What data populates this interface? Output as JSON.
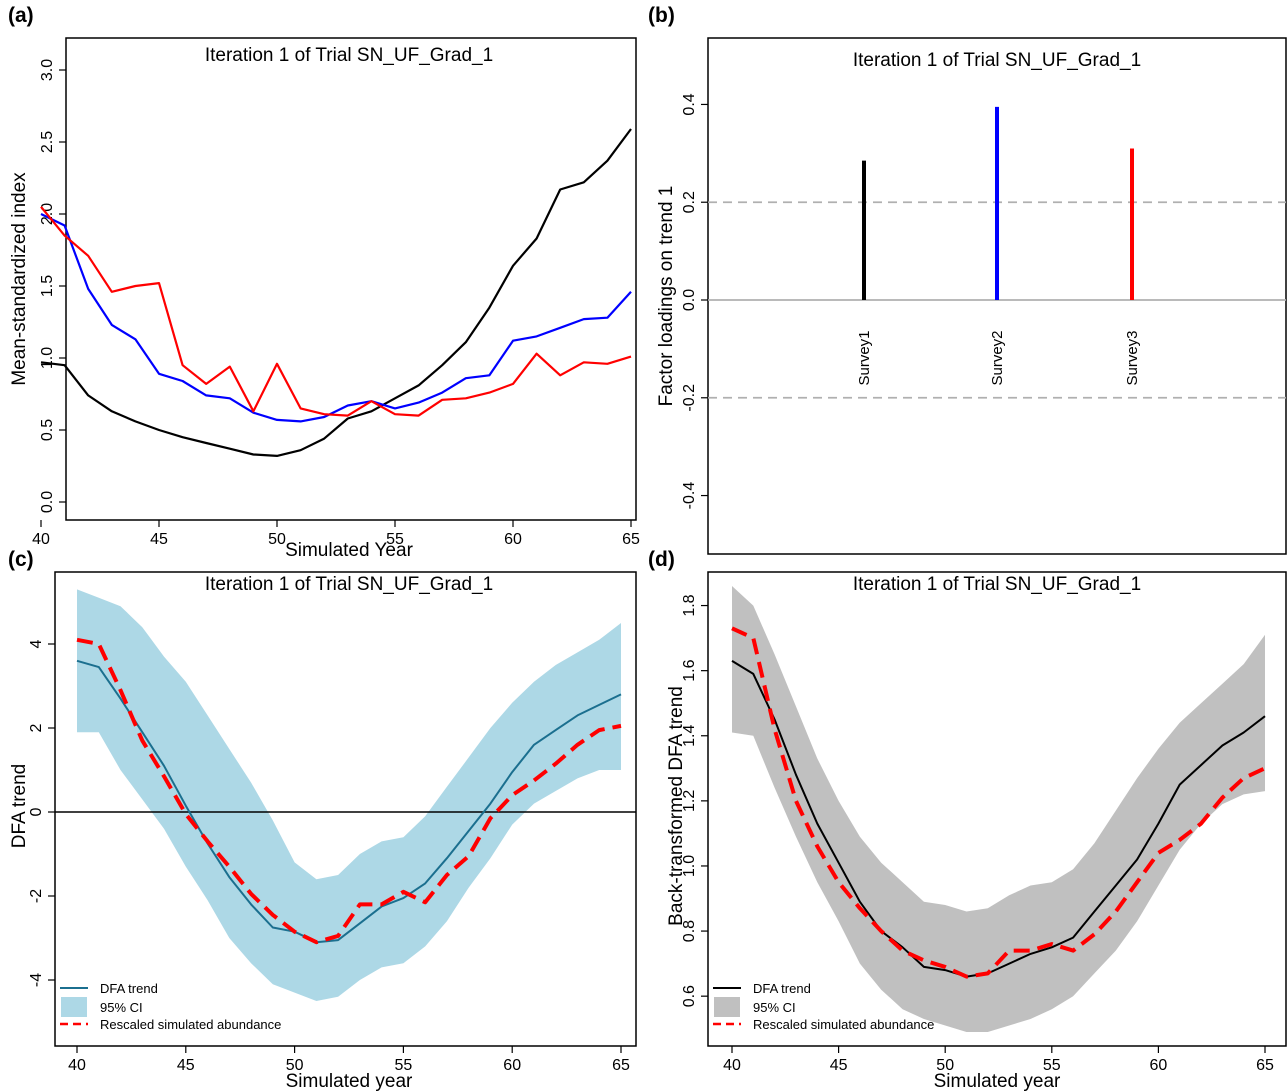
{
  "chart_data": [
    {
      "panel": "(a)",
      "type": "line",
      "title": "Iteration 1 of Trial SN_UF_Grad_1",
      "xlabel": "Simulated Year",
      "ylabel": "Mean-standardized index",
      "xlim": [
        40,
        65
      ],
      "ylim": [
        0,
        3
      ],
      "xticks": [
        40,
        45,
        50,
        55,
        60,
        65
      ],
      "yticks": [
        0.0,
        0.5,
        1.0,
        1.5,
        2.0,
        2.5,
        3.0
      ],
      "ytick_labels": [
        "0.0",
        "0.5",
        "1.0",
        "1.5",
        "2.0",
        "2.5",
        "3.0"
      ],
      "x": [
        40,
        41,
        42,
        43,
        44,
        45,
        46,
        47,
        48,
        49,
        50,
        51,
        52,
        53,
        54,
        55,
        56,
        57,
        58,
        59,
        60,
        61,
        62,
        63,
        64,
        65
      ],
      "series": [
        {
          "color": "#000000",
          "values": [
            0.97,
            0.95,
            0.74,
            0.63,
            0.56,
            0.5,
            0.45,
            0.41,
            0.37,
            0.33,
            0.32,
            0.36,
            0.44,
            0.58,
            0.63,
            0.72,
            0.81,
            0.95,
            1.11,
            1.35,
            1.64,
            1.83,
            2.17,
            2.22,
            2.37,
            2.59
          ]
        },
        {
          "color": "#0000ff",
          "values": [
            2.0,
            1.92,
            1.48,
            1.23,
            1.13,
            0.89,
            0.84,
            0.74,
            0.72,
            0.62,
            0.57,
            0.56,
            0.59,
            0.67,
            0.7,
            0.65,
            0.69,
            0.76,
            0.86,
            0.88,
            1.12,
            1.15,
            1.21,
            1.27,
            1.28,
            1.46
          ]
        },
        {
          "color": "#ff0000",
          "values": [
            2.05,
            1.85,
            1.71,
            1.46,
            1.5,
            1.52,
            0.95,
            0.82,
            0.94,
            0.63,
            0.96,
            0.65,
            0.61,
            0.6,
            0.7,
            0.61,
            0.6,
            0.71,
            0.72,
            0.76,
            0.82,
            1.03,
            0.88,
            0.97,
            0.96,
            1.01
          ]
        }
      ]
    },
    {
      "panel": "(b)",
      "type": "bar",
      "title": "Iteration 1 of Trial SN_UF_Grad_1",
      "ylabel": "Factor loadings on trend 1",
      "ylim": [
        -0.45,
        0.45
      ],
      "yticks": [
        -0.4,
        -0.2,
        0.0,
        0.2,
        0.4
      ],
      "ytick_labels": [
        "-0.4",
        "-0.2",
        "0.0",
        "0.2",
        "0.4"
      ],
      "categories": [
        "Survey1",
        "Survey2",
        "Survey3"
      ],
      "values": [
        0.285,
        0.395,
        0.31
      ],
      "colors": [
        "#000000",
        "#0000ff",
        "#ff0000"
      ],
      "reference_lines": [
        0.2,
        -0.2
      ]
    },
    {
      "panel": "(c)",
      "type": "area",
      "title": "Iteration 1 of Trial SN_UF_Grad_1",
      "xlabel": "Simulated year",
      "ylabel": "DFA trend",
      "xlim": [
        40,
        65
      ],
      "ylim": [
        -5,
        5
      ],
      "xticks": [
        40,
        45,
        50,
        55,
        60,
        65
      ],
      "yticks": [
        -4,
        -2,
        0,
        2,
        4
      ],
      "ytick_labels": [
        "-4",
        "-2",
        "0",
        "2",
        "4"
      ],
      "x": [
        40,
        41,
        42,
        43,
        44,
        45,
        46,
        47,
        48,
        49,
        50,
        51,
        52,
        53,
        54,
        55,
        56,
        57,
        58,
        59,
        60,
        61,
        62,
        63,
        64,
        65
      ],
      "ci_color": "#add8e6",
      "trend_color": "#1b6f8f",
      "abundance_color": "#ff0000",
      "trend": [
        3.6,
        3.45,
        2.7,
        1.9,
        1.1,
        0.15,
        -0.75,
        -1.55,
        -2.2,
        -2.75,
        -2.85,
        -3.1,
        -3.05,
        -2.65,
        -2.25,
        -2.05,
        -1.7,
        -1.1,
        -0.45,
        0.2,
        0.95,
        1.6,
        1.95,
        2.3,
        2.55,
        2.8
      ],
      "abundance": [
        4.1,
        4.0,
        2.9,
        1.7,
        0.85,
        -0.05,
        -0.7,
        -1.3,
        -1.95,
        -2.45,
        -2.85,
        -3.1,
        -2.95,
        -2.2,
        -2.2,
        -1.9,
        -2.15,
        -1.5,
        -1.05,
        -0.15,
        0.4,
        0.75,
        1.15,
        1.6,
        1.95,
        2.05
      ],
      "ci_upper": [
        5.3,
        5.1,
        4.9,
        4.4,
        3.7,
        3.1,
        2.3,
        1.5,
        0.7,
        -0.2,
        -1.2,
        -1.6,
        -1.5,
        -1.0,
        -0.7,
        -0.6,
        -0.1,
        0.6,
        1.3,
        2.0,
        2.6,
        3.1,
        3.5,
        3.8,
        4.1,
        4.5
      ],
      "ci_lower": [
        1.9,
        1.9,
        1.0,
        0.3,
        -0.4,
        -1.3,
        -2.1,
        -3.0,
        -3.6,
        -4.1,
        -4.3,
        -4.5,
        -4.4,
        -4.0,
        -3.7,
        -3.6,
        -3.2,
        -2.6,
        -1.8,
        -1.1,
        -0.3,
        0.2,
        0.5,
        0.8,
        1.0,
        1.0
      ],
      "legend": [
        "DFA trend",
        "95% CI",
        "Rescaled simulated abundance"
      ],
      "legend_position": "bottom-left",
      "reference_lines": [
        0
      ]
    },
    {
      "panel": "(d)",
      "type": "area",
      "title": "Iteration 1 of Trial SN_UF_Grad_1",
      "xlabel": "Simulated year",
      "ylabel": "Back-transformed DFA trend",
      "xlim": [
        40,
        65
      ],
      "ylim": [
        0.45,
        1.9
      ],
      "xticks": [
        40,
        45,
        50,
        55,
        60,
        65
      ],
      "yticks": [
        0.6,
        0.8,
        1.0,
        1.2,
        1.4,
        1.6,
        1.8
      ],
      "ytick_labels": [
        "0.6",
        "0.8",
        "1.0",
        "1.2",
        "1.4",
        "1.6",
        "1.8"
      ],
      "x": [
        40,
        41,
        42,
        43,
        44,
        45,
        46,
        47,
        48,
        49,
        50,
        51,
        52,
        53,
        54,
        55,
        56,
        57,
        58,
        59,
        60,
        61,
        62,
        63,
        64,
        65
      ],
      "ci_color": "#c0c0c0",
      "trend_color": "#000000",
      "abundance_color": "#ff0000",
      "trend": [
        1.63,
        1.59,
        1.45,
        1.28,
        1.13,
        1.01,
        0.89,
        0.8,
        0.75,
        0.69,
        0.68,
        0.66,
        0.67,
        0.7,
        0.73,
        0.75,
        0.78,
        0.86,
        0.94,
        1.02,
        1.13,
        1.25,
        1.31,
        1.37,
        1.41,
        1.46
      ],
      "abundance": [
        1.73,
        1.7,
        1.42,
        1.2,
        1.06,
        0.95,
        0.87,
        0.8,
        0.74,
        0.71,
        0.69,
        0.66,
        0.67,
        0.74,
        0.74,
        0.76,
        0.74,
        0.79,
        0.86,
        0.95,
        1.04,
        1.08,
        1.13,
        1.21,
        1.27,
        1.3
      ],
      "ci_upper": [
        1.86,
        1.8,
        1.65,
        1.49,
        1.33,
        1.2,
        1.09,
        1.01,
        0.95,
        0.89,
        0.88,
        0.86,
        0.87,
        0.91,
        0.94,
        0.95,
        0.99,
        1.07,
        1.17,
        1.27,
        1.36,
        1.44,
        1.5,
        1.56,
        1.62,
        1.71
      ],
      "ci_lower": [
        1.41,
        1.4,
        1.24,
        1.09,
        0.95,
        0.83,
        0.7,
        0.62,
        0.56,
        0.53,
        0.51,
        0.49,
        0.49,
        0.51,
        0.53,
        0.56,
        0.6,
        0.67,
        0.74,
        0.83,
        0.94,
        1.05,
        1.13,
        1.19,
        1.22,
        1.23
      ],
      "legend": [
        "DFA trend",
        "95% CI",
        "Rescaled simulated abundance"
      ],
      "legend_position": "bottom-left"
    }
  ]
}
